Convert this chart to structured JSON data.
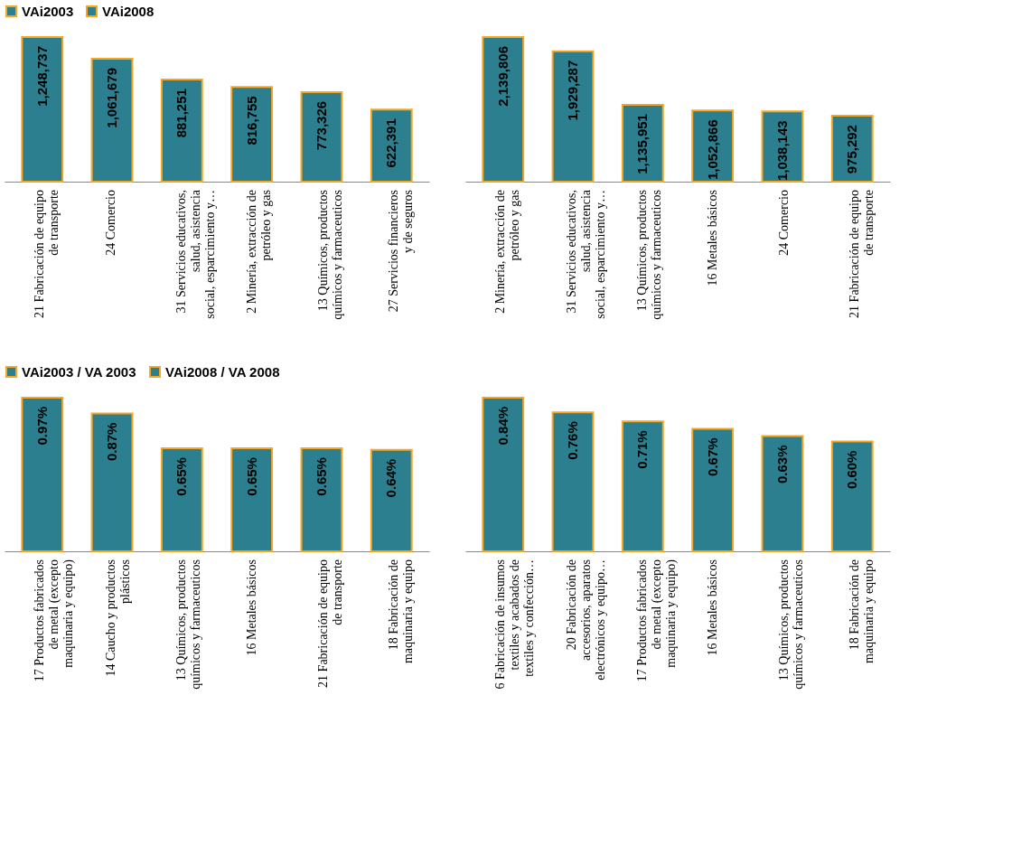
{
  "chart_data": [
    {
      "type": "bar",
      "legend": "top",
      "categories": [
        "21 Fabricación de equipo de transporte",
        "24 Comercio",
        "31 Servicios educativos, salud, asistencia social, esparcimiento y…",
        "2 Minería, extracción de petróleo y gas",
        "13 Químicos, productos químicos y farmaceuticos",
        "27 Servicios financieros y de seguros"
      ],
      "series": [
        {
          "name": "VAi2003",
          "color": "#2b7f8e",
          "values": [
            1248737,
            1061679,
            881251,
            816755,
            773326,
            622391
          ],
          "value_labels": [
            "1,248,737",
            "1,061,679",
            "881,251",
            "816,755",
            "773,326",
            "622,391"
          ]
        }
      ]
    },
    {
      "type": "bar",
      "legend": "top",
      "categories": [
        "2 Minería, extracción de petróleo y gas",
        "31 Servicios educativos, salud, asistencia social, esparcimiento y…",
        "13 Químicos, productos químicos y farmaceuticos",
        "16 Metales básicos",
        "24 Comercio",
        "21 Fabricación de equipo de transporte"
      ],
      "series": [
        {
          "name": "VAi2008",
          "color": "#2b7f8e",
          "values": [
            2139806,
            1929287,
            1135951,
            1052866,
            1038143,
            975292
          ],
          "value_labels": [
            "2,139,806",
            "1,929,287",
            "1,135,951",
            "1,052,866",
            "1,038,143",
            "975,292"
          ]
        }
      ]
    },
    {
      "type": "bar",
      "legend": "top",
      "categories": [
        "17 Productos fabricados de metal (excepto maquinaria y equipo)",
        "14 Caucho y productos plásticos",
        "13 Químicos, productos químicos y farmaceuticos",
        "16 Metales básicos",
        "21 Fabricación de equipo de transporte",
        "18 Fabricación de maquinaria y equipo"
      ],
      "series": [
        {
          "name": "VAi2003 / VA 2003",
          "color": "#2b7f8e",
          "values": [
            0.97,
            0.87,
            0.65,
            0.65,
            0.65,
            0.64
          ],
          "value_labels": [
            "0.97%",
            "0.87%",
            "0.65%",
            "0.65%",
            "0.65%",
            "0.64%"
          ]
        }
      ]
    },
    {
      "type": "bar",
      "legend": "top",
      "categories": [
        "6 Fabricación de insumos textiles y acabados de textiles y confección…",
        "20 Fabricación de accesorios, aparatos electrónicos y equipo…",
        "17 Productos fabricados de metal (excepto maquinaria y equipo)",
        "16 Metales básicos",
        "13 Químicos, productos químicos y farmaceuticos",
        "18 Fabricación de maquinaria y equipo"
      ],
      "series": [
        {
          "name": "VAi2008 / VA 2008",
          "color": "#2b7f8e",
          "values": [
            0.84,
            0.76,
            0.71,
            0.67,
            0.63,
            0.6
          ],
          "value_labels": [
            "0.84%",
            "0.76%",
            "0.71%",
            "0.67%",
            "0.63%",
            "0.60%"
          ]
        }
      ]
    }
  ]
}
